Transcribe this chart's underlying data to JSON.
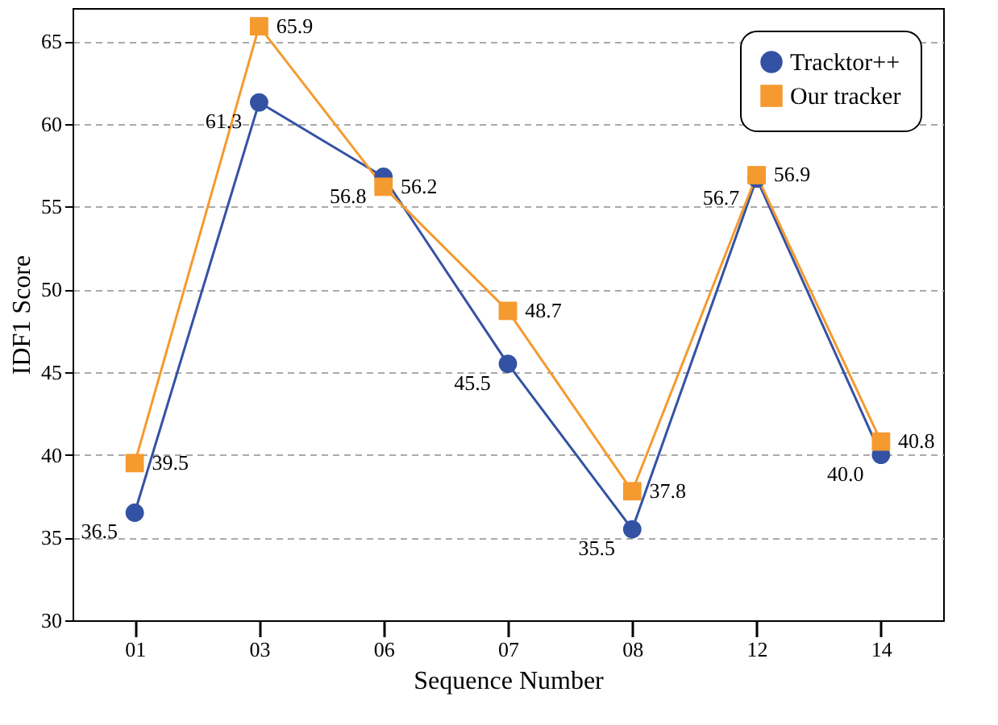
{
  "chart_data": {
    "type": "line",
    "xlabel": "Sequence Number",
    "ylabel": "IDF1 Score",
    "categories": [
      "01",
      "03",
      "06",
      "07",
      "08",
      "12",
      "14"
    ],
    "series": [
      {
        "name": "Tracktor++",
        "color": "#3452a4",
        "marker": "circle",
        "values": [
          36.5,
          61.3,
          56.8,
          45.5,
          35.5,
          56.7,
          40.0
        ],
        "value_labels": [
          "36.5",
          "61.3",
          "56.8",
          "45.5",
          "35.5",
          "56.7",
          "40.0"
        ]
      },
      {
        "name": "Our tracker",
        "color": "#f59a2f",
        "marker": "square",
        "values": [
          39.5,
          65.9,
          56.2,
          48.7,
          37.8,
          56.9,
          40.8
        ],
        "value_labels": [
          "39.5",
          "65.9",
          "56.2",
          "48.7",
          "37.8",
          "56.9",
          "40.8"
        ]
      }
    ],
    "ylim": [
      30,
      67
    ],
    "yticks": [
      30,
      35,
      40,
      45,
      50,
      55,
      60,
      65
    ],
    "grid": "y",
    "legend": "top right"
  }
}
